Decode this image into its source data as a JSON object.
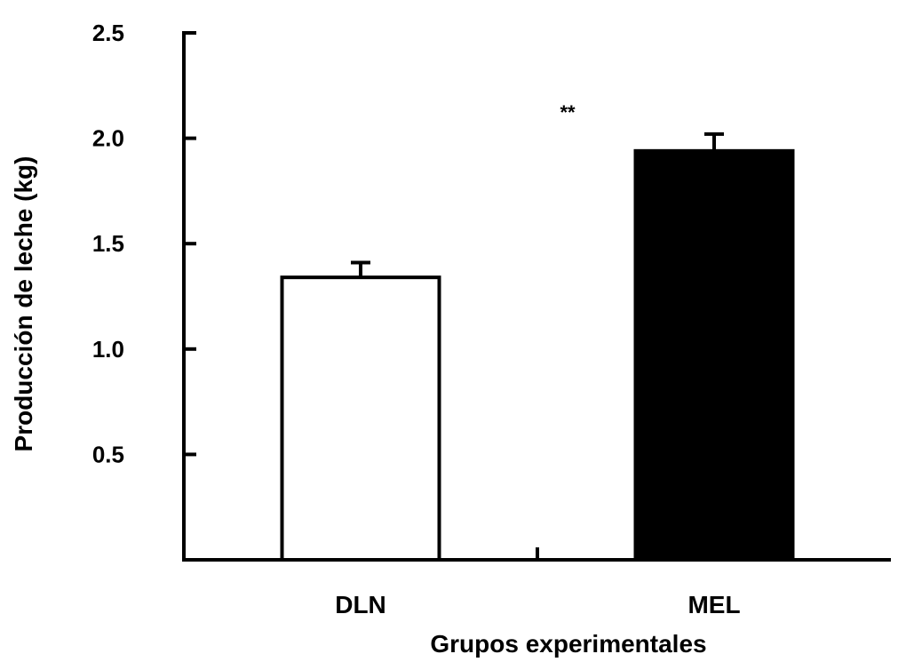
{
  "chart_data": {
    "type": "bar",
    "categories": [
      "DLN",
      "MEL"
    ],
    "values": [
      1.34,
      1.94
    ],
    "errors": [
      0.07,
      0.08
    ],
    "ylim": [
      0,
      2.5
    ],
    "yticks": [
      "0.5",
      "1.0",
      "1.5",
      "2.0",
      "2.5"
    ],
    "ylabel": "Producción de leche (kg)",
    "xlabel": "Grupos experimentales",
    "annotation": "**",
    "grid": false,
    "colors": {
      "DLN": "#ffffff",
      "MEL": "#000000",
      "axis": "#000000"
    }
  }
}
